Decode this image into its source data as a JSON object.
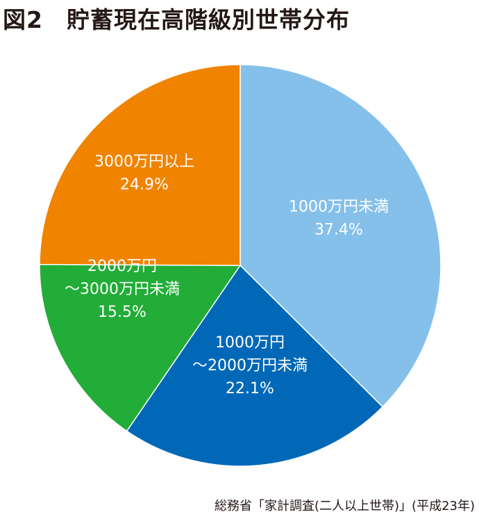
{
  "title": "図2　貯蓄現在高階級別世帯分布",
  "source": "総務省「家計調査(二人以上世帯)」(平成23年)",
  "chart_data": {
    "type": "pie",
    "title": "図2　貯蓄現在高階級別世帯分布",
    "slices": [
      {
        "label_lines": [
          "1000万円未満"
        ],
        "value": 37.4,
        "value_label": "37.4%",
        "color": "#85C0EB"
      },
      {
        "label_lines": [
          "1000万円",
          "～2000万円未満"
        ],
        "value": 22.1,
        "value_label": "22.1%",
        "color": "#0068B7"
      },
      {
        "label_lines": [
          "2000万円",
          "～3000万円未満"
        ],
        "value": 15.5,
        "value_label": "15.5%",
        "color": "#22AC38"
      },
      {
        "label_lines": [
          "3000万円以上"
        ],
        "value": 24.9,
        "value_label": "24.9%",
        "color": "#F08300"
      }
    ],
    "start_angle_deg": 0,
    "direction": "clockwise",
    "legend": "none"
  }
}
